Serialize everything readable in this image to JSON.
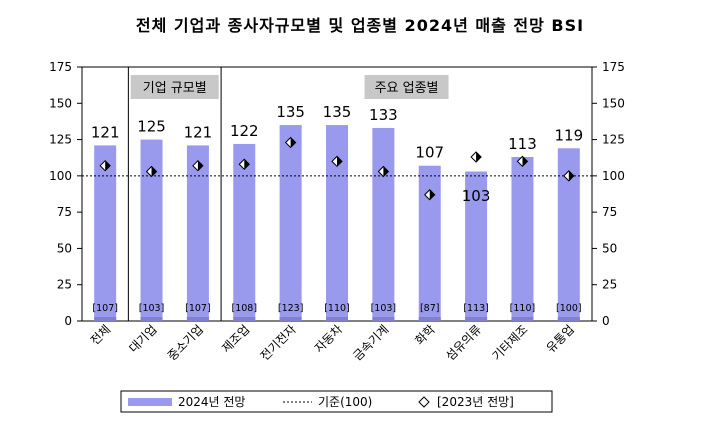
{
  "chart_data": {
    "type": "bar",
    "title": "전체 기업과 종사자규모별 및 업종별 2024년 매출 전망 BSI",
    "categories": [
      "전체",
      "대기업",
      "중소기업",
      "제조업",
      "전기전자",
      "자동차",
      "금속기계",
      "화학",
      "섬유의류",
      "기타제조",
      "유통업"
    ],
    "series": [
      {
        "name": "2024년 전망",
        "values": [
          121,
          125,
          121,
          122,
          135,
          135,
          133,
          107,
          103,
          113,
          119
        ]
      },
      {
        "name": "[2023년 전망]",
        "values": [
          107,
          103,
          107,
          108,
          123,
          110,
          103,
          87,
          113,
          110,
          100
        ]
      }
    ],
    "value_labels": [
      "121",
      "125",
      "121",
      "122",
      "135",
      "135",
      "133",
      "107",
      "103",
      "113",
      "119"
    ],
    "prev_labels": [
      "[107]",
      "[103]",
      "[107]",
      "[108]",
      "[123]",
      "[110]",
      "[103]",
      "[87]",
      "[113]",
      "[110]",
      "[100]"
    ],
    "reference": {
      "name": "기준(100)",
      "value": 100
    },
    "y_ticks": [
      "0",
      "25",
      "50",
      "75",
      "100",
      "125",
      "150",
      "175"
    ],
    "ylim": [
      0,
      175
    ],
    "groups": [
      "기업 규모별",
      "주요 업종별"
    ],
    "legend": [
      "2024년 전망",
      "기준(100)",
      "[2023년 전망]"
    ],
    "colors": {
      "bar": "#9999ee",
      "bar_base": "#8080cc",
      "marker_dark": "#000000",
      "marker_light": "#ffffff",
      "group_box": "#c8c8c8",
      "axis": "#000000"
    }
  }
}
